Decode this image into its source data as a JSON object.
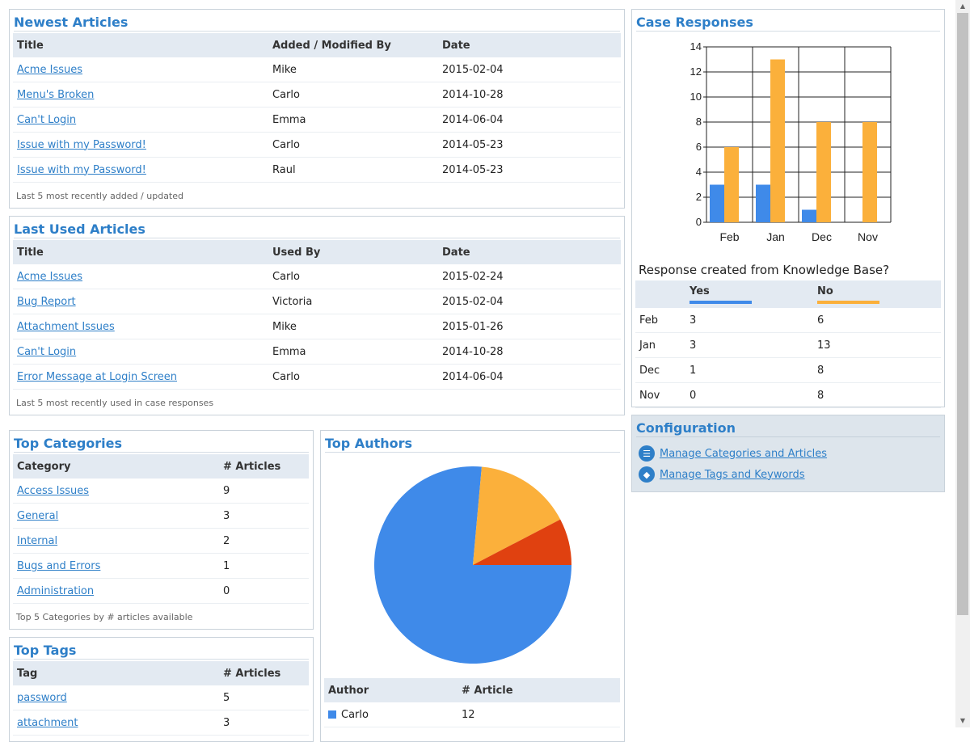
{
  "newest": {
    "title": "Newest Articles",
    "headers": [
      "Title",
      "Added / Modified By",
      "Date"
    ],
    "rows": [
      [
        "Acme Issues",
        "Mike",
        "2015-02-04"
      ],
      [
        "Menu's Broken",
        "Carlo",
        "2014-10-28"
      ],
      [
        "Can't Login",
        "Emma",
        "2014-06-04"
      ],
      [
        "Issue with my Password!",
        "Carlo",
        "2014-05-23"
      ],
      [
        "Issue with my Password!",
        "Raul",
        "2014-05-23"
      ]
    ],
    "footer": "Last 5 most recently added / updated"
  },
  "last_used": {
    "title": "Last Used Articles",
    "headers": [
      "Title",
      "Used By",
      "Date"
    ],
    "rows": [
      [
        "Acme Issues",
        "Carlo",
        "2015-02-24"
      ],
      [
        "Bug Report",
        "Victoria",
        "2015-02-04"
      ],
      [
        "Attachment Issues",
        "Mike",
        "2015-01-26"
      ],
      [
        "Can't Login",
        "Emma",
        "2014-10-28"
      ],
      [
        "Error Message at Login Screen",
        "Carlo",
        "2014-06-04"
      ]
    ],
    "footer": "Last 5 most recently used in case responses"
  },
  "top_categories": {
    "title": "Top Categories",
    "headers": [
      "Category",
      "# Articles"
    ],
    "rows": [
      [
        "Access Issues",
        "9"
      ],
      [
        "General",
        "3"
      ],
      [
        "Internal",
        "2"
      ],
      [
        "Bugs and Errors",
        "1"
      ],
      [
        "Administration",
        "0"
      ]
    ],
    "footer": "Top 5 Categories by # articles available"
  },
  "top_tags": {
    "title": "Top Tags",
    "headers": [
      "Tag",
      "# Articles"
    ],
    "rows": [
      [
        "password",
        "5"
      ],
      [
        "attachment",
        "3"
      ]
    ]
  },
  "top_authors": {
    "title": "Top Authors",
    "headers": [
      "Author",
      "# Article"
    ],
    "rows": [
      [
        "Carlo",
        "12"
      ]
    ]
  },
  "case_responses": {
    "title": "Case Responses",
    "question": "Response created from Knowledge Base?",
    "headers": [
      "",
      "Yes",
      "No"
    ],
    "rows": [
      [
        "Feb",
        "3",
        "6"
      ],
      [
        "Jan",
        "3",
        "13"
      ],
      [
        "Dec",
        "1",
        "8"
      ],
      [
        "Nov",
        "0",
        "8"
      ]
    ]
  },
  "configuration": {
    "title": "Configuration",
    "links": [
      "Manage Categories and Articles",
      "Manage Tags and Keywords"
    ],
    "icons": [
      "document-icon",
      "tag-icon"
    ]
  },
  "colors": {
    "blue": "#3f8ae9",
    "orange": "#fbb03b",
    "red": "#e04110",
    "accent": "#2e7fc8"
  },
  "chart_data": [
    {
      "type": "bar",
      "categories": [
        "Feb",
        "Jan",
        "Dec",
        "Nov"
      ],
      "series": [
        {
          "name": "Yes",
          "values": [
            3,
            3,
            1,
            0
          ]
        },
        {
          "name": "No",
          "values": [
            6,
            13,
            8,
            8
          ]
        }
      ],
      "yticks": [
        "0",
        "2",
        "4",
        "6",
        "8",
        "10",
        "12",
        "14"
      ],
      "ylim": [
        0,
        14
      ],
      "grid": true
    },
    {
      "type": "pie",
      "slices": [
        {
          "label": "Carlo",
          "value": 12
        },
        {
          "label": "",
          "value": 2.5
        },
        {
          "label": "",
          "value": 1.2
        }
      ]
    }
  ]
}
